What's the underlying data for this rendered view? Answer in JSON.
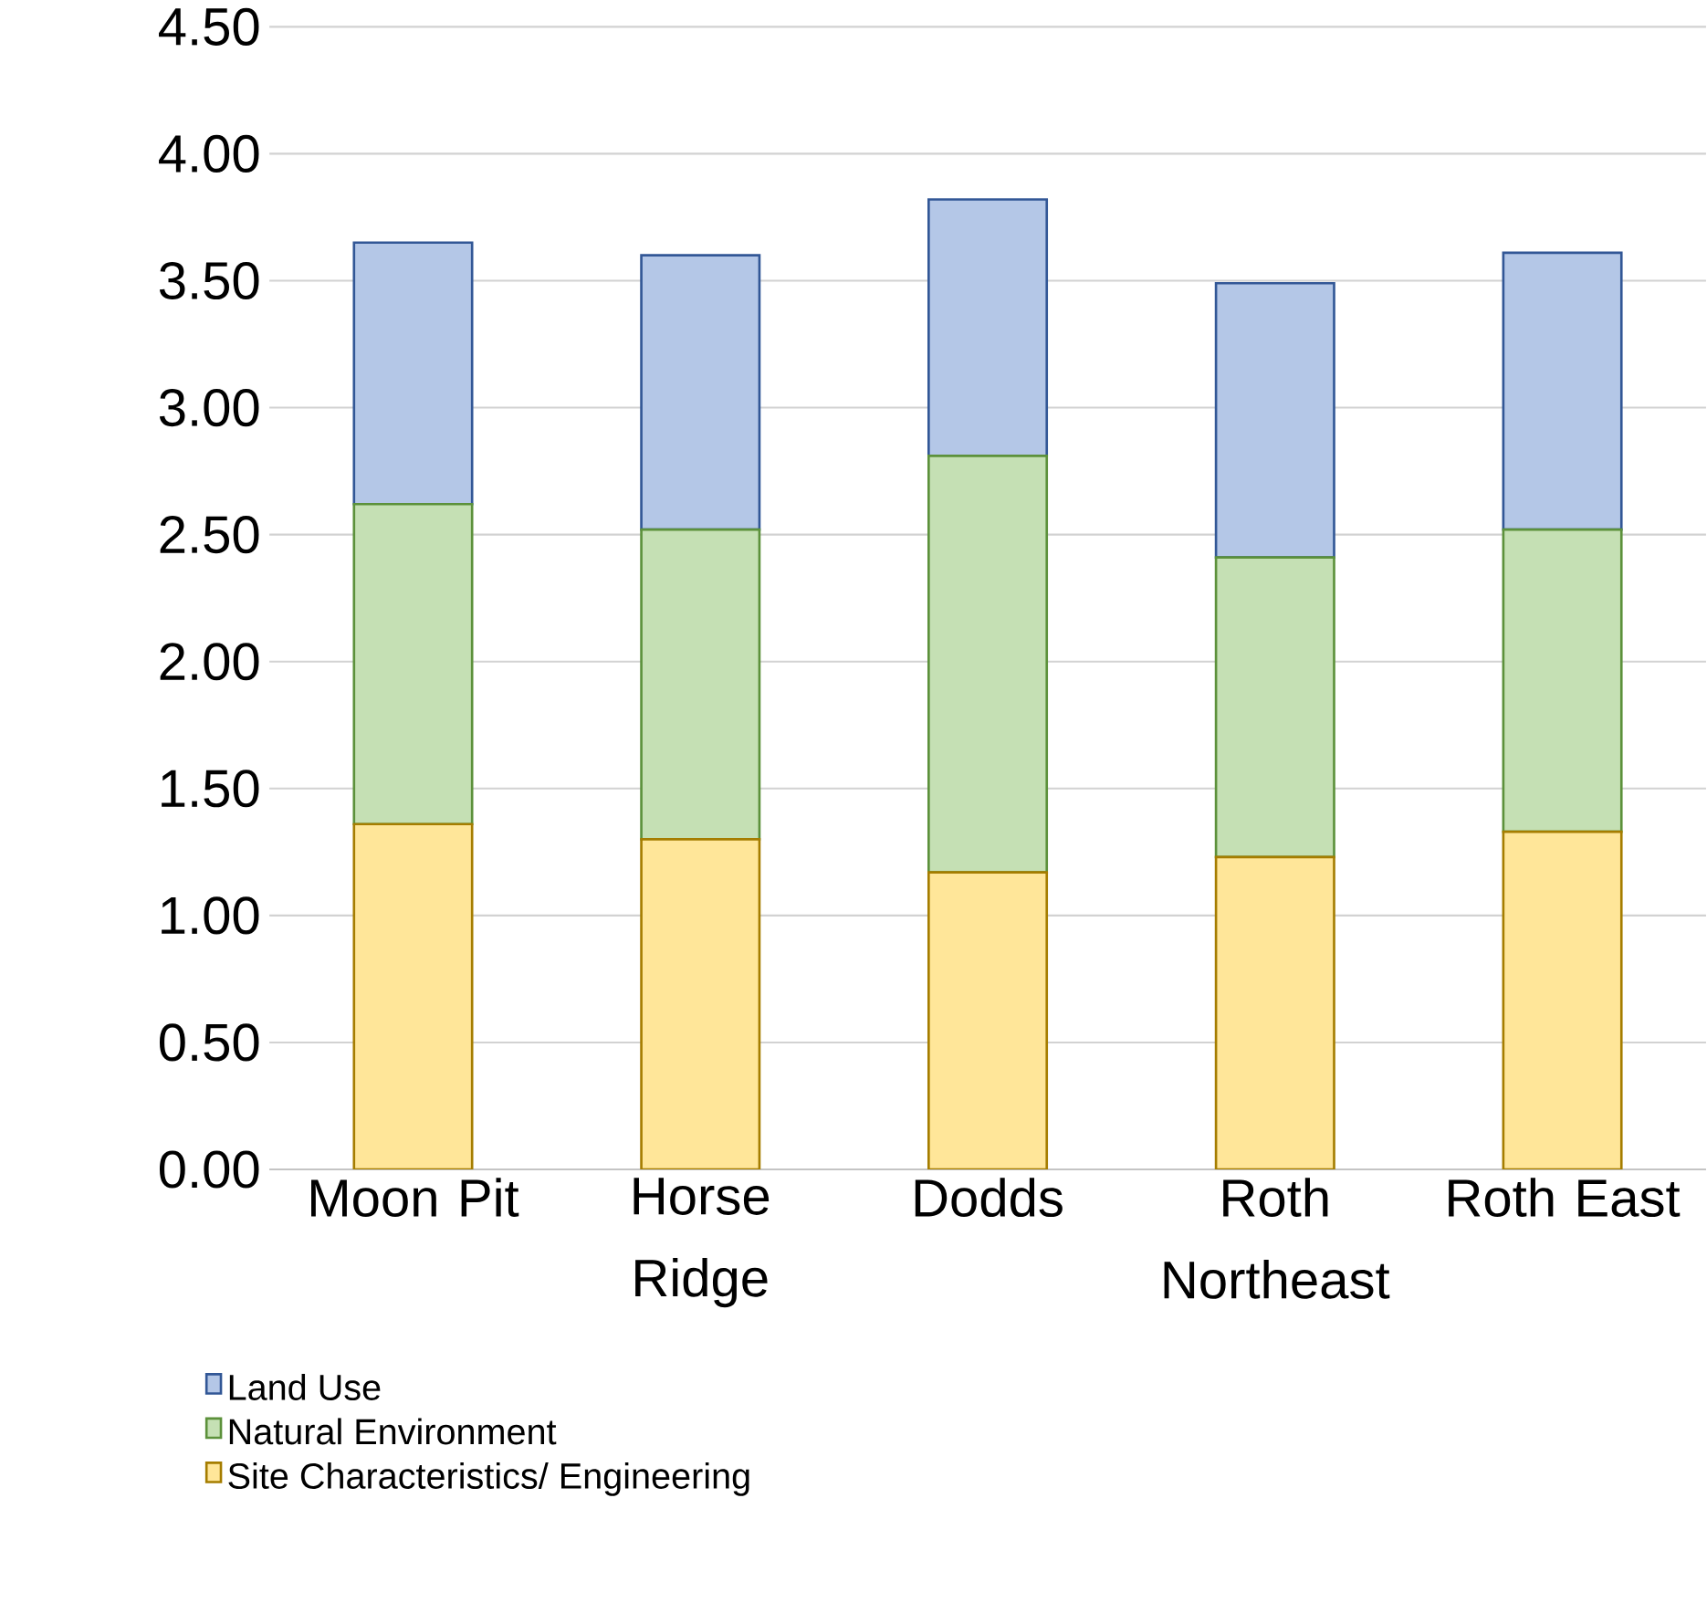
{
  "chart_data": {
    "type": "bar",
    "stacked": true,
    "categories": [
      "Moon Pit",
      "Horse Ridge",
      "Dodds",
      "Roth Northeast",
      "Roth East"
    ],
    "series": [
      {
        "name": "Site Characteristics/ Engineering",
        "color": "#ffe699",
        "values": [
          1.36,
          1.3,
          1.17,
          1.23,
          1.33
        ]
      },
      {
        "name": "Natural Environment",
        "color": "#c5e0b4",
        "values": [
          1.26,
          1.22,
          1.64,
          1.18,
          1.19
        ]
      },
      {
        "name": "Land Use",
        "color": "#b4c7e7",
        "values": [
          1.03,
          1.08,
          1.01,
          1.08,
          1.09
        ]
      }
    ],
    "ylim": [
      0,
      4.5
    ],
    "yticks": [
      {
        "value": 0,
        "label": "0.00"
      },
      {
        "value": 0.5,
        "label": "0.50"
      },
      {
        "value": 1,
        "label": "1.00"
      },
      {
        "value": 1.5,
        "label": "1.50"
      },
      {
        "value": 2,
        "label": "2.00"
      },
      {
        "value": 2.5,
        "label": "2.50"
      },
      {
        "value": 3,
        "label": "3.00"
      },
      {
        "value": 3.5,
        "label": "3.50"
      },
      {
        "value": 4,
        "label": "4.00"
      },
      {
        "value": 4.5,
        "label": "4.50"
      }
    ],
    "grid": "y",
    "legend": "bottom"
  }
}
